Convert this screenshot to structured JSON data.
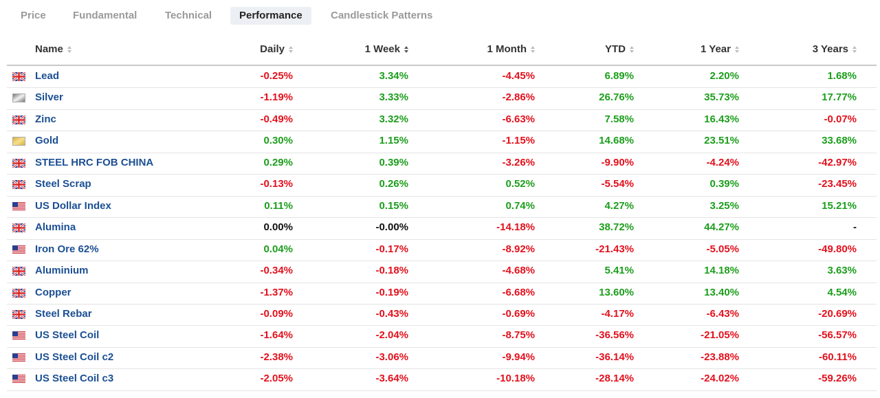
{
  "tabs": [
    "Price",
    "Fundamental",
    "Technical",
    "Performance",
    "Candlestick Patterns"
  ],
  "active_tab": "Performance",
  "table": {
    "headers": [
      "Name",
      "Daily",
      "1 Week",
      "1 Month",
      "YTD",
      "1 Year",
      "3 Years"
    ],
    "rows": [
      [
        "Lead",
        "-0.25%",
        "3.34%",
        "-4.45%",
        "6.89%",
        "2.20%",
        "1.68%"
      ],
      [
        "Silver",
        "-1.19%",
        "3.33%",
        "-2.86%",
        "26.76%",
        "35.73%",
        "17.77%"
      ],
      [
        "Zinc",
        "-0.49%",
        "3.32%",
        "-6.63%",
        "7.58%",
        "16.43%",
        "-0.07%"
      ],
      [
        "Gold",
        "0.30%",
        "1.15%",
        "-1.15%",
        "14.68%",
        "23.51%",
        "33.68%"
      ],
      [
        "STEEL HRC FOB CHINA",
        "0.29%",
        "0.39%",
        "-3.26%",
        "-9.90%",
        "-4.24%",
        "-42.97%"
      ],
      [
        "Steel Scrap",
        "-0.13%",
        "0.26%",
        "0.52%",
        "-5.54%",
        "0.39%",
        "-23.45%"
      ],
      [
        "US Dollar Index",
        "0.11%",
        "0.15%",
        "0.74%",
        "4.27%",
        "3.25%",
        "15.21%"
      ],
      [
        "Alumina",
        "0.00%",
        "-0.00%",
        "-14.18%",
        "38.72%",
        "44.27%",
        "-"
      ],
      [
        "Iron Ore 62%",
        "0.04%",
        "-0.17%",
        "-8.92%",
        "-21.43%",
        "-5.05%",
        "-49.80%"
      ],
      [
        "Aluminium",
        "-0.34%",
        "-0.18%",
        "-4.68%",
        "5.41%",
        "14.18%",
        "3.63%"
      ],
      [
        "Copper",
        "-1.37%",
        "-0.19%",
        "-6.68%",
        "13.60%",
        "13.40%",
        "4.54%"
      ],
      [
        "Steel Rebar",
        "-0.09%",
        "-0.43%",
        "-0.69%",
        "-4.17%",
        "-6.43%",
        "-20.69%"
      ],
      [
        "US Steel Coil",
        "-1.64%",
        "-2.04%",
        "-8.75%",
        "-36.56%",
        "-21.05%",
        "-56.57%"
      ],
      [
        "US Steel Coil c2",
        "-2.38%",
        "-3.06%",
        "-9.94%",
        "-36.14%",
        "-23.88%",
        "-60.11%"
      ],
      [
        "US Steel Coil c3",
        "-2.05%",
        "-3.64%",
        "-10.18%",
        "-28.14%",
        "-24.02%",
        "-59.26%"
      ]
    ]
  }
}
